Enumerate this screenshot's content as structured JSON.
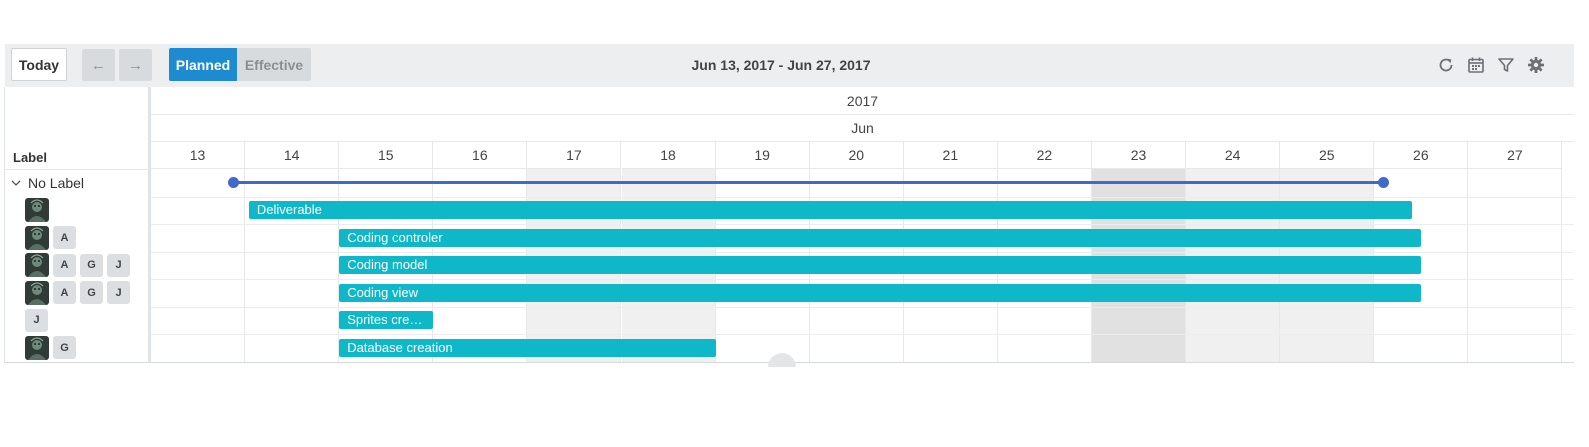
{
  "toolbar": {
    "today_label": "Today",
    "prev_label": "←",
    "next_label": "→",
    "planned_label": "Planned",
    "effective_label": "Effective",
    "date_range": "Jun 13, 2017 - Jun 27, 2017",
    "tools": [
      {
        "icon": "refresh-icon"
      },
      {
        "icon": "calendar-icon"
      },
      {
        "icon": "filter-icon"
      },
      {
        "icon": "gear-icon"
      }
    ]
  },
  "timeline": {
    "year": "2017",
    "month": "Jun",
    "days": [
      "13",
      "14",
      "15",
      "16",
      "17",
      "18",
      "19",
      "20",
      "21",
      "22",
      "23",
      "24",
      "25",
      "26",
      "27"
    ],
    "weekend_days": [
      "17",
      "18",
      "24",
      "25"
    ],
    "today_day": "23"
  },
  "left_pane": {
    "header": "Label",
    "group_label": "No Label"
  },
  "rows": [
    {
      "avatar": true,
      "chips": [],
      "task": "Deliverable",
      "start_day": 14.04,
      "end_day": 26.4
    },
    {
      "avatar": true,
      "chips": [
        "A"
      ],
      "task": "Coding controler",
      "start_day": 15.0,
      "end_day": 26.5
    },
    {
      "avatar": true,
      "chips": [
        "A",
        "G",
        "J"
      ],
      "task": "Coding model",
      "start_day": 15.0,
      "end_day": 26.5
    },
    {
      "avatar": true,
      "chips": [
        "A",
        "G",
        "J"
      ],
      "task": "Coding view",
      "start_day": 15.0,
      "end_day": 26.5
    },
    {
      "avatar": false,
      "chips": [
        "J"
      ],
      "task": "Sprites cre…",
      "start_day": 15.0,
      "end_day": 16.0
    },
    {
      "avatar": true,
      "chips": [
        "G"
      ],
      "task": "Database creation",
      "start_day": 15.0,
      "end_day": 19.0
    }
  ],
  "milestone": {
    "start_day": 13.88,
    "end_day": 26.1
  },
  "colors": {
    "accent": "#1e8bd0",
    "bar": "#0fb8c8",
    "milestone": "#4169c9",
    "weekend": "#f0f0f1",
    "today": "#e1e1e2"
  }
}
